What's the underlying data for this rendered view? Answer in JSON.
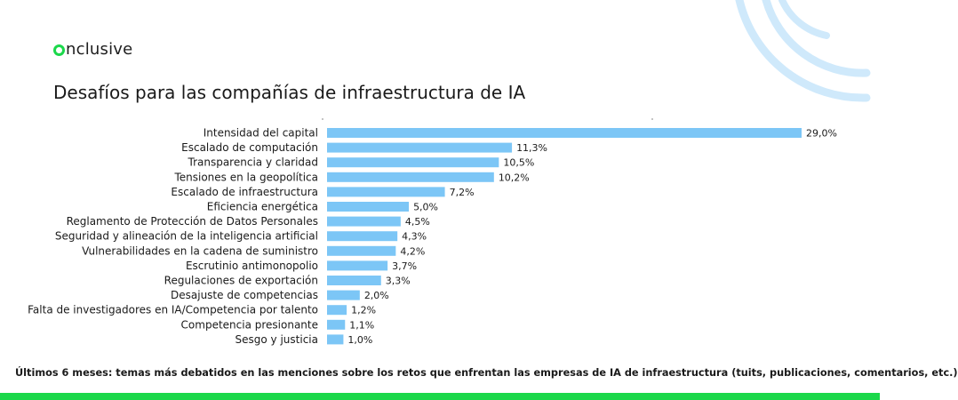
{
  "brand": {
    "name": "nclusive",
    "accent": "#1bd84a",
    "deco_color": "#cfe9fb",
    "logo_icon": "green-ring-icon"
  },
  "title": "Desafíos para las compañías de infraestructura de IA",
  "footnote": "Últimos 6 meses: temas más debatidos en las menciones sobre los retos que enfrentan las empresas de IA de infraestructura (tuits, publicaciones, comentarios, etc.)",
  "chart_data": {
    "type": "bar",
    "orientation": "horizontal",
    "bar_color": "#7cc6f6",
    "categories": [
      "Intensidad del capital",
      "Escalado de computación",
      "Transparencia y claridad",
      "Tensiones en la geopolítica",
      "Escalado de infraestructura",
      "Eficiencia energética",
      "Reglamento de Protección de Datos Personales",
      "Seguridad y alineación de la inteligencia artificial",
      "Vulnerabilidades en la cadena de suministro",
      "Escrutinio antimonopolio",
      "Regulaciones de exportación",
      "Desajuste de competencias",
      "Falta de investigadores en IA/Competencia por talento",
      "Competencia presionante",
      "Sesgo y justicia"
    ],
    "values": [
      29.0,
      11.3,
      10.5,
      10.2,
      7.2,
      5.0,
      4.5,
      4.3,
      4.2,
      3.7,
      3.3,
      2.0,
      1.2,
      1.1,
      1.0
    ],
    "labels": [
      "29,0%",
      "11,3%",
      "10,5%",
      "10,2%",
      "7,2%",
      "5,0%",
      "4,5%",
      "4,3%",
      "4,2%",
      "3,7%",
      "3,3%",
      "2,0%",
      "1,2%",
      "1,1%",
      "1,0%"
    ],
    "unit": "%",
    "xlim": [
      0,
      30
    ],
    "grid": false,
    "legend": "none"
  }
}
